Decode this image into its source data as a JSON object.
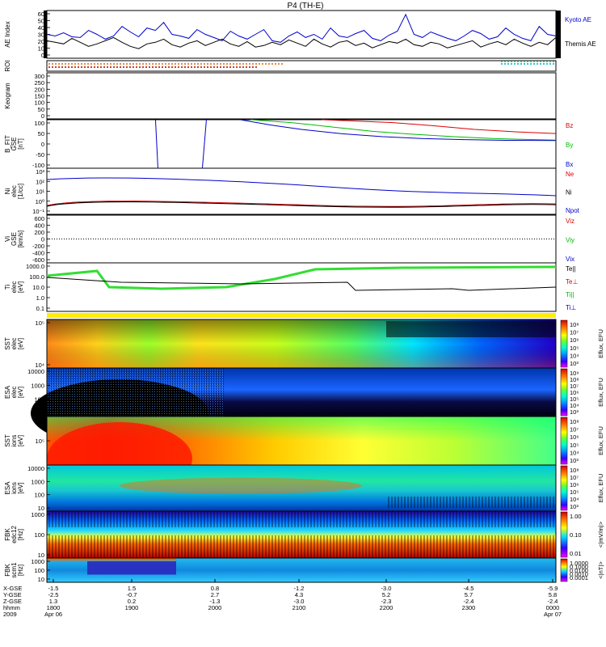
{
  "title": "P4 (TH-E)",
  "colors": {
    "black": "#000000",
    "blue": "#0000cc",
    "red": "#dd0000",
    "green": "#00bb00",
    "lime": "#33dd33"
  },
  "chart_data": [
    {
      "type": "line",
      "ylabel": "AE Index",
      "ylim": [
        0,
        60
      ],
      "y_ticks": [
        "60",
        "50",
        "40",
        "30",
        "20",
        "10",
        "0"
      ],
      "series": [
        {
          "name": "Kyoto AE",
          "color": "#0000cc",
          "values": [
            30,
            28,
            32,
            27,
            26,
            35,
            30,
            24,
            28,
            40,
            33,
            27,
            38,
            35,
            45,
            30,
            28,
            25,
            36,
            30,
            26,
            22,
            34,
            28,
            24,
            30,
            36,
            22,
            20,
            28,
            33,
            26,
            30,
            24,
            38,
            28,
            26,
            31,
            35,
            25,
            22,
            29,
            34,
            55,
            30,
            26,
            33,
            29,
            25,
            22,
            28,
            35,
            31,
            24,
            27,
            38,
            30,
            25,
            22,
            40,
            30,
            28
          ]
        },
        {
          "name": "Themis AE",
          "color": "#000000",
          "values": [
            22,
            20,
            18,
            25,
            20,
            15,
            18,
            22,
            26,
            20,
            15,
            12,
            18,
            20,
            24,
            17,
            14,
            19,
            22,
            16,
            20,
            24,
            18,
            15,
            21,
            14,
            16,
            20,
            17,
            23,
            19,
            15,
            24,
            18,
            14,
            20,
            22,
            16,
            19,
            13,
            17,
            21,
            19,
            24,
            17,
            15,
            20,
            18,
            13,
            16,
            19,
            22,
            14,
            18,
            21,
            17,
            24,
            19,
            15,
            20,
            17,
            26
          ]
        }
      ]
    },
    {
      "type": "line",
      "ylabel": "ROI",
      "y_ticks": []
    },
    {
      "type": "line",
      "ylabel": "Keogram",
      "ylim": [
        0,
        300
      ],
      "y_ticks": [
        "300",
        "250",
        "200",
        "150",
        "100",
        "50",
        "0"
      ]
    },
    {
      "type": "line",
      "ylabel": "B_FIT\nGSE\n[nT]",
      "ylim": [
        -100,
        100
      ],
      "y_ticks": [
        "100",
        "50",
        "0",
        "-50",
        "-100"
      ],
      "series": [
        {
          "name": "Bz",
          "color": "#dd0000",
          "x": [
            0.54,
            0.6,
            0.68,
            0.76,
            0.84,
            0.92,
            1.0
          ],
          "values": [
            100,
            95,
            88,
            75,
            60,
            50,
            43
          ]
        },
        {
          "name": "By",
          "color": "#00bb00",
          "x": [
            0.4,
            0.48,
            0.56,
            0.64,
            0.72,
            0.8,
            0.88,
            0.96,
            1.0
          ],
          "values": [
            100,
            88,
            70,
            52,
            40,
            30,
            22,
            18,
            16
          ]
        },
        {
          "name": "Bx",
          "color": "#0000cc",
          "x": [
            0.38,
            0.44,
            0.5,
            0.58,
            0.66,
            0.74,
            0.82,
            0.9,
            1.0
          ],
          "values": [
            100,
            78,
            60,
            42,
            30,
            22,
            18,
            15,
            14
          ]
        }
      ],
      "spikes_x": [
        0.215,
        0.315
      ]
    },
    {
      "type": "line",
      "ylabel": "Ni\nelec\n[1/cc]",
      "y_ticks": [
        "10³",
        "10²",
        "10¹",
        "10⁰",
        "10⁻¹"
      ],
      "legend": [
        "Ne",
        "Ni",
        "Npot"
      ]
    },
    {
      "type": "line",
      "ylabel": "Vi\nGSE\n[km/s]",
      "ylim": [
        -600,
        600
      ],
      "y_ticks": [
        "600",
        "400",
        "200",
        "0",
        "-200",
        "-400",
        "-600"
      ],
      "legend": [
        "Viz",
        "Viy",
        "Vix"
      ]
    },
    {
      "type": "line",
      "ylabel": "Ti\nelec\n[eV]",
      "y_ticks": [
        "1000.0",
        "100.0",
        "10.0",
        "1.0",
        "0.1"
      ],
      "legend": [
        "Te||",
        "Te⊥",
        "Ti||",
        "Ti⊥"
      ]
    },
    {
      "type": "heatmap",
      "ylabel": "SST\nelec\n[eV]",
      "y_ticks": [
        "10⁵",
        "10⁴"
      ],
      "colorbar_label": "Eflux, EFU",
      "colorbar_ticks": [
        "10⁸",
        "10⁷",
        "10⁶",
        "10⁵",
        "10⁴",
        "10³"
      ]
    },
    {
      "type": "heatmap",
      "ylabel": "ESA\nelec\n[eV]",
      "y_ticks": [
        "10000",
        "1000",
        "100",
        "10"
      ],
      "colorbar_label": "Eflux, EFU",
      "colorbar_ticks": [
        "10⁹",
        "10⁸",
        "10⁷",
        "10⁶",
        "10⁵",
        "10⁴",
        "10³"
      ]
    },
    {
      "type": "heatmap",
      "ylabel": "SST\nions\n[eV]",
      "y_ticks": [
        "10⁵"
      ],
      "colorbar_label": "Eflux, EFU",
      "colorbar_ticks": [
        "10⁸",
        "10⁷",
        "10⁶",
        "10⁵",
        "10⁴",
        "10³"
      ]
    },
    {
      "type": "heatmap",
      "ylabel": "ESA\nions\n[eV]",
      "y_ticks": [
        "10000",
        "1000",
        "100",
        "10"
      ],
      "colorbar_label": "Eflux, EFU",
      "colorbar_ticks": [
        "10⁸",
        "10⁷",
        "10⁶",
        "10⁵",
        "10⁴",
        "10³"
      ]
    },
    {
      "type": "heatmap",
      "ylabel": "FBK\nedc12\n[Hz]",
      "y_ticks": [
        "1000",
        "100",
        "10"
      ],
      "colorbar_label": "<|mV/m|>",
      "colorbar_ticks": [
        "1.00",
        "0.10",
        "0.01"
      ]
    },
    {
      "type": "heatmap",
      "ylabel": "FBK\nscm1\n[Hz]",
      "y_ticks": [
        "1000",
        "100",
        "10"
      ],
      "colorbar_label": "<|nT|>",
      "colorbar_ticks": [
        "1.0000",
        "0.1000",
        "0.0100",
        "0.0010",
        "0.0001"
      ]
    }
  ],
  "x_axis": {
    "row_labels": [
      "X-GSE",
      "Y-GSE",
      "Z-GSE",
      "hhmm",
      "2009"
    ],
    "columns": [
      [
        "-1.5",
        "-2.5",
        "1.3",
        "1800",
        "Apr 06"
      ],
      [
        "1.5",
        "-0.7",
        "0.2",
        "1900",
        ""
      ],
      [
        "0.8",
        "2.7",
        "-1.3",
        "2000",
        ""
      ],
      [
        "-1.2",
        "4.3",
        "-3.0",
        "2100",
        ""
      ],
      [
        "-3.0",
        "5.2",
        "-2.3",
        "2200",
        ""
      ],
      [
        "-4.5",
        "5.7",
        "-2.4",
        "2300",
        ""
      ],
      [
        "-5.9",
        "5.8",
        "-2.4",
        "0000",
        "Apr 07"
      ]
    ]
  }
}
